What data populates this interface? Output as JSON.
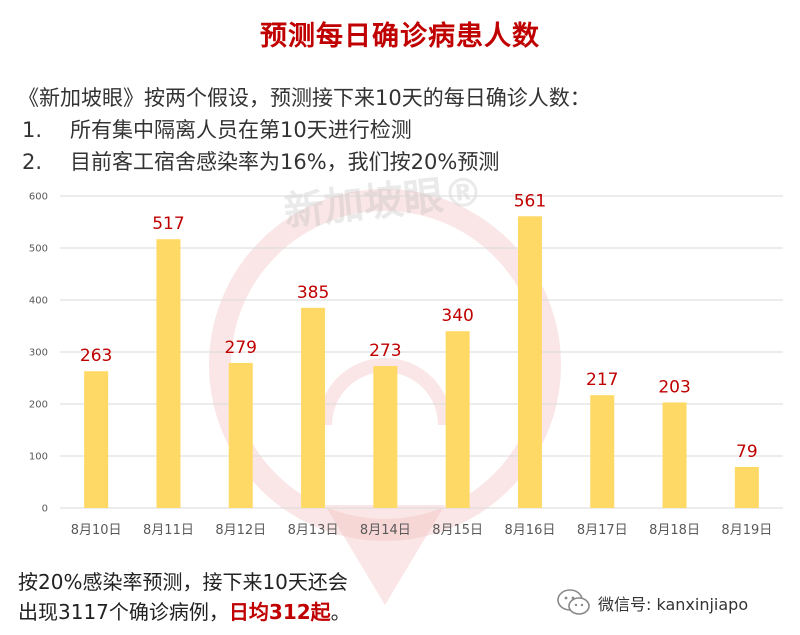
{
  "title": "预测每日确诊病患人数",
  "intro": {
    "line1": "《新加坡眼》按两个假设，预测接下来10天的每日确诊人数：",
    "assumptions": [
      {
        "num": "1.",
        "text": "所有集中隔离人员在第10天进行检测"
      },
      {
        "num": "2.",
        "text": "目前客工宿舍感染率为16%，我们按20%预测"
      }
    ]
  },
  "watermark": {
    "text": "新加坡眼®"
  },
  "colors": {
    "title": "#c00000",
    "bar": "#ffd966",
    "data_label": "#c00000",
    "axis_text": "#595959",
    "grid": "#d9d9d9"
  },
  "chart_data": {
    "type": "bar",
    "categories": [
      "8月10日",
      "8月11日",
      "8月12日",
      "8月13日",
      "8月14日",
      "8月15日",
      "8月16日",
      "8月17日",
      "8月18日",
      "8月19日"
    ],
    "values": [
      263,
      517,
      279,
      385,
      273,
      340,
      561,
      217,
      203,
      79
    ],
    "ylim": [
      0,
      600
    ],
    "yticks": [
      0,
      100,
      200,
      300,
      400,
      500,
      600
    ],
    "grid": true,
    "data_labels": true
  },
  "footer": {
    "line1": "按20%感染率预测，接下来10天还会",
    "line2_prefix": "出现3117个确诊病例，",
    "line2_highlight": "日均312起",
    "line2_suffix": "。"
  },
  "wechat": {
    "label": "微信号: kanxinjiapo",
    "icon": "wechat-icon"
  }
}
